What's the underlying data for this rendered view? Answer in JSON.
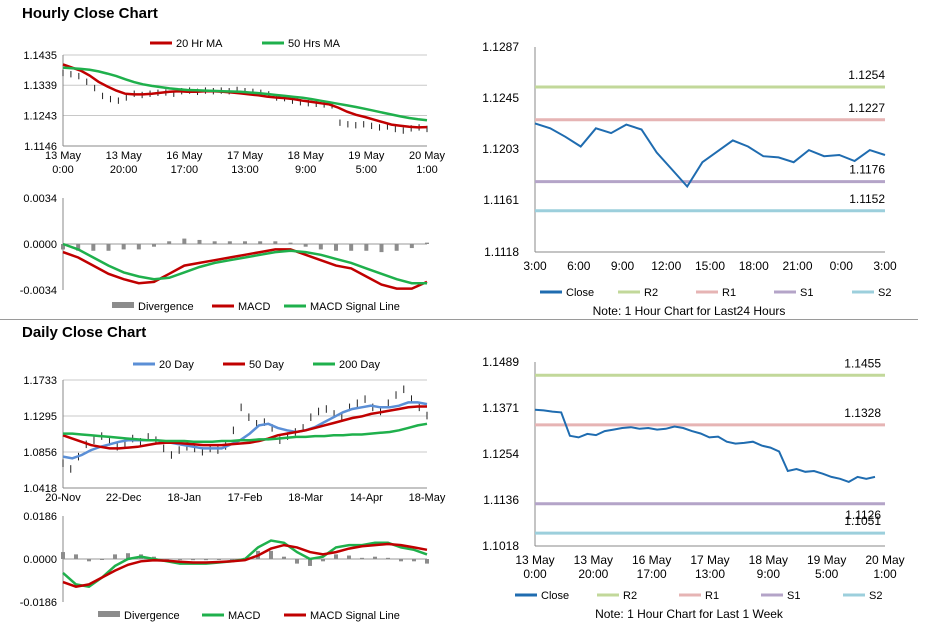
{
  "sections": {
    "hourly_title": "Hourly Close Chart",
    "daily_title": "Daily Close Chart"
  },
  "colors": {
    "ma20": "#c00000",
    "ma50": "#1fb04c",
    "close": "#1f6cb0",
    "day20": "#5b8fd6",
    "r2": "#c2d89a",
    "r1": "#e6b4b4",
    "s1": "#b4a4c8",
    "s2": "#9ccfdc",
    "divergence": "#8c8c8c"
  },
  "chart_data": [
    {
      "id": "hourly-price",
      "type": "line",
      "legend": [
        "20 Hr MA",
        "50 Hrs MA"
      ],
      "y_ticks": [
        "1.1435",
        "1.1339",
        "1.1243",
        "1.1146"
      ],
      "ylim": [
        1.1146,
        1.1435
      ],
      "x_ticks": [
        "13 May\n0:00",
        "13 May\n20:00",
        "16 May\n17:00",
        "17 May\n13:00",
        "18 May\n9:00",
        "19 May\n5:00",
        "20 May\n1:00"
      ],
      "price_series": [
        1.1378,
        1.1374,
        1.1368,
        1.135,
        1.133,
        1.1305,
        1.1295,
        1.129,
        1.13,
        1.1312,
        1.1308,
        1.1312,
        1.1315,
        1.1316,
        1.1312,
        1.132,
        1.1322,
        1.1318,
        1.1322,
        1.132,
        1.1322,
        1.132,
        1.1324,
        1.132,
        1.1318,
        1.1315,
        1.131,
        1.13,
        1.1298,
        1.129,
        1.1285,
        1.1282,
        1.128,
        1.1278,
        1.1275,
        1.122,
        1.1215,
        1.1212,
        1.1215,
        1.121,
        1.1205,
        1.1208,
        1.12,
        1.1195,
        1.1202,
        1.1205,
        1.12
      ],
      "series": [
        {
          "name": "20 Hr MA",
          "values": [
            1.1405,
            1.1395,
            1.1385,
            1.137,
            1.135,
            1.1335,
            1.1322,
            1.1312,
            1.131,
            1.131,
            1.1312,
            1.1315,
            1.1318,
            1.132,
            1.1318,
            1.1318,
            1.132,
            1.132,
            1.1318,
            1.1316,
            1.1313,
            1.131,
            1.1307,
            1.1303,
            1.13,
            1.1298,
            1.1295,
            1.129,
            1.1286,
            1.1282,
            1.1278,
            1.1268,
            1.1255,
            1.1245,
            1.1238,
            1.123,
            1.1222,
            1.1214,
            1.121,
            1.1207,
            1.1205,
            1.1206
          ]
        },
        {
          "name": "50 Hrs MA",
          "values": [
            1.1395,
            1.1393,
            1.1391,
            1.1388,
            1.1383,
            1.1376,
            1.1368,
            1.1358,
            1.1349,
            1.1342,
            1.1337,
            1.1333,
            1.1329,
            1.1326,
            1.1324,
            1.1323,
            1.1322,
            1.1321,
            1.132,
            1.1319,
            1.1318,
            1.1316,
            1.1314,
            1.1311,
            1.1308,
            1.1305,
            1.1302,
            1.1299,
            1.1295,
            1.129,
            1.1285,
            1.128,
            1.1275,
            1.127,
            1.1264,
            1.1258,
            1.1252,
            1.1246,
            1.124,
            1.1235,
            1.1231,
            1.1228
          ]
        }
      ]
    },
    {
      "id": "hourly-macd",
      "type": "line",
      "legend": [
        "Divergence",
        "MACD",
        "MACD Signal Line"
      ],
      "y_ticks": [
        "0.0034",
        "0.0000",
        "-0.0034"
      ],
      "ylim": [
        -0.0034,
        0.0034
      ],
      "series": [
        {
          "name": "MACD",
          "values": [
            -0.0006,
            -0.001,
            -0.0016,
            -0.0022,
            -0.0026,
            -0.0029,
            -0.0028,
            -0.0022,
            -0.0016,
            -0.0014,
            -0.0012,
            -0.001,
            -0.0008,
            -0.0006,
            -0.0004,
            -0.0004,
            -0.0008,
            -0.0012,
            -0.0016,
            -0.0018,
            -0.0024,
            -0.003,
            -0.0033,
            -0.0033,
            -0.0028
          ]
        },
        {
          "name": "MACD Signal Line",
          "values": [
            0.0,
            -0.0004,
            -0.001,
            -0.0016,
            -0.0021,
            -0.0024,
            -0.0026,
            -0.0025,
            -0.0021,
            -0.0017,
            -0.0014,
            -0.0012,
            -0.001,
            -0.0008,
            -0.0006,
            -0.0005,
            -0.0006,
            -0.0008,
            -0.0011,
            -0.0014,
            -0.0018,
            -0.0022,
            -0.0026,
            -0.0029,
            -0.0029
          ]
        }
      ],
      "divergence": [
        -0.0004,
        -0.0005,
        -0.0005,
        -0.0005,
        -0.0004,
        -0.0004,
        -0.0002,
        0.0002,
        0.0004,
        0.0003,
        0.0002,
        0.0002,
        0.0002,
        0.0002,
        0.0002,
        0.0001,
        -0.0002,
        -0.0004,
        -0.0005,
        -0.0005,
        -0.0005,
        -0.0006,
        -0.0005,
        -0.0003,
        0.0001
      ]
    },
    {
      "id": "hourly-levels",
      "type": "line",
      "y_ticks": [
        "1.1287",
        "1.1245",
        "1.1203",
        "1.1161",
        "1.1118"
      ],
      "ylim": [
        1.1118,
        1.1287
      ],
      "x_ticks": [
        "3:00",
        "6:00",
        "9:00",
        "12:00",
        "15:00",
        "18:00",
        "21:00",
        "0:00",
        "3:00"
      ],
      "levels": [
        {
          "name": "R2",
          "value": 1.1254,
          "label": "1.1254"
        },
        {
          "name": "R1",
          "value": 1.1227,
          "label": "1.1227"
        },
        {
          "name": "S1",
          "value": 1.1176,
          "label": "1.1176"
        },
        {
          "name": "S2",
          "value": 1.1152,
          "label": "1.1152"
        }
      ],
      "close": [
        1.1224,
        1.122,
        1.1213,
        1.1205,
        1.122,
        1.1216,
        1.1223,
        1.1219,
        1.12,
        1.1186,
        1.1172,
        1.1192,
        1.1201,
        1.121,
        1.1205,
        1.1197,
        1.1196,
        1.1192,
        1.1202,
        1.1197,
        1.1198,
        1.1193,
        1.1202,
        1.1198
      ],
      "legend": [
        "Close",
        "R2",
        "R1",
        "S1",
        "S2"
      ],
      "note": "Note: 1 Hour Chart for Last24 Hours"
    },
    {
      "id": "daily-price",
      "type": "line",
      "legend": [
        "20 Day",
        "50 Day",
        "200 Day"
      ],
      "y_ticks": [
        "1.1733",
        "1.1295",
        "1.0856",
        "1.0418"
      ],
      "ylim": [
        1.0418,
        1.1733
      ],
      "x_ticks": [
        "20-Nov",
        "22-Dec",
        "18-Jan",
        "17-Feb",
        "18-Mar",
        "14-Apr",
        "18-May"
      ],
      "price_series": [
        1.072,
        1.065,
        1.08,
        1.095,
        1.1,
        1.105,
        1.098,
        1.092,
        1.096,
        1.102,
        1.098,
        1.104,
        1.1,
        1.09,
        1.082,
        1.088,
        1.092,
        1.09,
        1.086,
        1.09,
        1.088,
        1.093,
        1.112,
        1.14,
        1.128,
        1.12,
        1.122,
        1.115,
        1.1,
        1.105,
        1.11,
        1.115,
        1.128,
        1.135,
        1.138,
        1.132,
        1.128,
        1.14,
        1.145,
        1.15,
        1.14,
        1.135,
        1.145,
        1.155,
        1.162,
        1.15,
        1.14,
        1.13
      ],
      "series": [
        {
          "name": "20 Day",
          "values": [
            1.08,
            1.078,
            1.082,
            1.088,
            1.092,
            1.095,
            1.098,
            1.1,
            1.1,
            1.1,
            1.1,
            1.098,
            1.096,
            1.094,
            1.092,
            1.09,
            1.09,
            1.09,
            1.095,
            1.1,
            1.108,
            1.118,
            1.12,
            1.115,
            1.112,
            1.11,
            1.112,
            1.116,
            1.122,
            1.128,
            1.134,
            1.138,
            1.14,
            1.142,
            1.14,
            1.14,
            1.142,
            1.146,
            1.146,
            1.144
          ]
        },
        {
          "name": "50 Day",
          "values": [
            1.106,
            1.102,
            1.098,
            1.094,
            1.092,
            1.09,
            1.09,
            1.091,
            1.092,
            1.094,
            1.096,
            1.097,
            1.097,
            1.096,
            1.095,
            1.094,
            1.094,
            1.094,
            1.095,
            1.096,
            1.097,
            1.099,
            1.102,
            1.106,
            1.108,
            1.11,
            1.112,
            1.115,
            1.118,
            1.121,
            1.124,
            1.127,
            1.129,
            1.132,
            1.134,
            1.136,
            1.138,
            1.14,
            1.141,
            1.141
          ]
        },
        {
          "name": "200 Day",
          "values": [
            1.108,
            1.108,
            1.107,
            1.106,
            1.105,
            1.104,
            1.103,
            1.102,
            1.101,
            1.1,
            1.1,
            1.099,
            1.099,
            1.099,
            1.098,
            1.098,
            1.098,
            1.099,
            1.099,
            1.1,
            1.1,
            1.101,
            1.101,
            1.102,
            1.103,
            1.104,
            1.104,
            1.105,
            1.105,
            1.106,
            1.106,
            1.107,
            1.107,
            1.108,
            1.109,
            1.11,
            1.112,
            1.115,
            1.118,
            1.12
          ]
        }
      ]
    },
    {
      "id": "daily-macd",
      "type": "line",
      "legend": [
        "Divergence",
        "MACD",
        "MACD Signal Line"
      ],
      "y_ticks": [
        "0.0186",
        "0.0000",
        "-0.0186"
      ],
      "ylim": [
        -0.0186,
        0.0186
      ],
      "series": [
        {
          "name": "MACD",
          "values": [
            -0.006,
            -0.011,
            -0.012,
            -0.008,
            -0.003,
            0.0,
            0.001,
            0.0,
            -0.001,
            -0.002,
            -0.002,
            -0.002,
            -0.0015,
            -0.001,
            0.0,
            0.005,
            0.008,
            0.007,
            0.003,
            0.0,
            0.001,
            0.005,
            0.006,
            0.006,
            0.007,
            0.007,
            0.005,
            0.004,
            0.002
          ]
        },
        {
          "name": "MACD Signal Line",
          "values": [
            -0.01,
            -0.012,
            -0.011,
            -0.008,
            -0.005,
            -0.0025,
            -0.001,
            -0.0005,
            -0.0008,
            -0.0012,
            -0.0015,
            -0.0015,
            -0.0013,
            -0.001,
            -0.0005,
            0.0015,
            0.0045,
            0.006,
            0.005,
            0.003,
            0.002,
            0.003,
            0.0045,
            0.0055,
            0.006,
            0.0065,
            0.006,
            0.005,
            0.004
          ]
        }
      ],
      "divergence": [
        0.003,
        0.002,
        -0.001,
        0.0,
        0.002,
        0.0025,
        0.002,
        0.001,
        0.0,
        -0.0005,
        -0.0005,
        -0.0005,
        -0.0002,
        0.0,
        0.0005,
        0.0035,
        0.0035,
        0.001,
        -0.002,
        -0.003,
        -0.001,
        0.002,
        0.0015,
        0.0005,
        0.001,
        0.0005,
        -0.001,
        -0.001,
        -0.002
      ]
    },
    {
      "id": "daily-levels",
      "type": "line",
      "y_ticks": [
        "1.1489",
        "1.1371",
        "1.1254",
        "1.1136",
        "1.1018"
      ],
      "ylim": [
        1.1018,
        1.1489
      ],
      "x_ticks": [
        "13 May\n0:00",
        "13 May\n20:00",
        "16 May\n17:00",
        "17 May\n13:00",
        "18 May\n9:00",
        "19 May\n5:00",
        "20 May\n1:00"
      ],
      "levels": [
        {
          "name": "R2",
          "value": 1.1455,
          "label": "1.1455"
        },
        {
          "name": "R1",
          "value": 1.1328,
          "label": "1.1328"
        },
        {
          "name": "S1",
          "value": 1.1126,
          "label": "1.1126"
        },
        {
          "name": "S2",
          "value": 1.1051,
          "label": "1.1051"
        }
      ],
      "close": [
        1.1367,
        1.1365,
        1.1362,
        1.136,
        1.13,
        1.1296,
        1.1305,
        1.1302,
        1.1312,
        1.1316,
        1.132,
        1.1322,
        1.1318,
        1.132,
        1.1316,
        1.1318,
        1.1324,
        1.132,
        1.1312,
        1.1306,
        1.1296,
        1.1298,
        1.1285,
        1.128,
        1.1282,
        1.1285,
        1.1275,
        1.127,
        1.126,
        1.121,
        1.1215,
        1.1208,
        1.121,
        1.1203,
        1.1195,
        1.119,
        1.1182,
        1.1195,
        1.119,
        1.1195
      ],
      "legend": [
        "Close",
        "R2",
        "R1",
        "S1",
        "S2"
      ],
      "note": "Note: 1 Hour Chart for Last 1 Week"
    }
  ]
}
